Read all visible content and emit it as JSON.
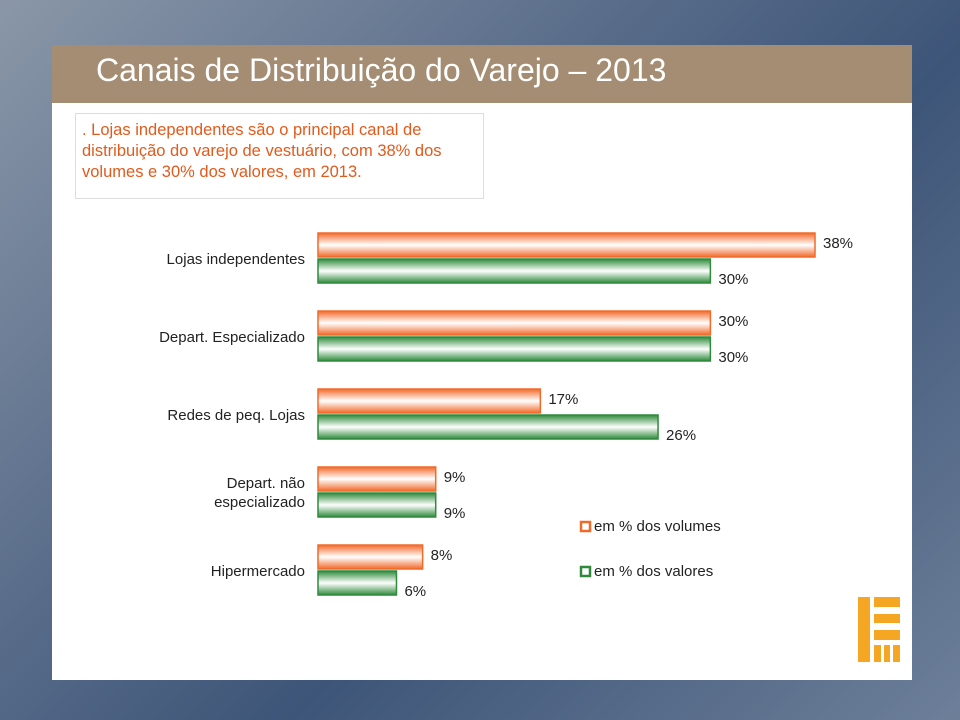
{
  "chart_data": {
    "type": "bar",
    "title": "Canais de Distribuição do Varejo – 2013",
    "subtitle": ". Lojas independentes são o principal canal de distribuição do varejo de vestuário, com 38% dos volumes e 30% dos valores, em 2013.",
    "categories": [
      "Lojas independentes",
      "Depart. Especializado",
      "Redes de peq. Lojas",
      "Depart. não especializado",
      "Hipermercado"
    ],
    "series": [
      {
        "name": "em % dos volumes",
        "color": "#f26a2a",
        "values": [
          38,
          30,
          17,
          9,
          8
        ],
        "value_labels": [
          "38%",
          "30%",
          "17%",
          "9%",
          "8%"
        ]
      },
      {
        "name": "em % dos valores",
        "color": "#2f8a3c",
        "values": [
          30,
          30,
          26,
          9,
          6
        ],
        "value_labels": [
          "30%",
          "30%",
          "26%",
          "9%",
          "6%"
        ]
      }
    ],
    "orientation": "horizontal"
  }
}
